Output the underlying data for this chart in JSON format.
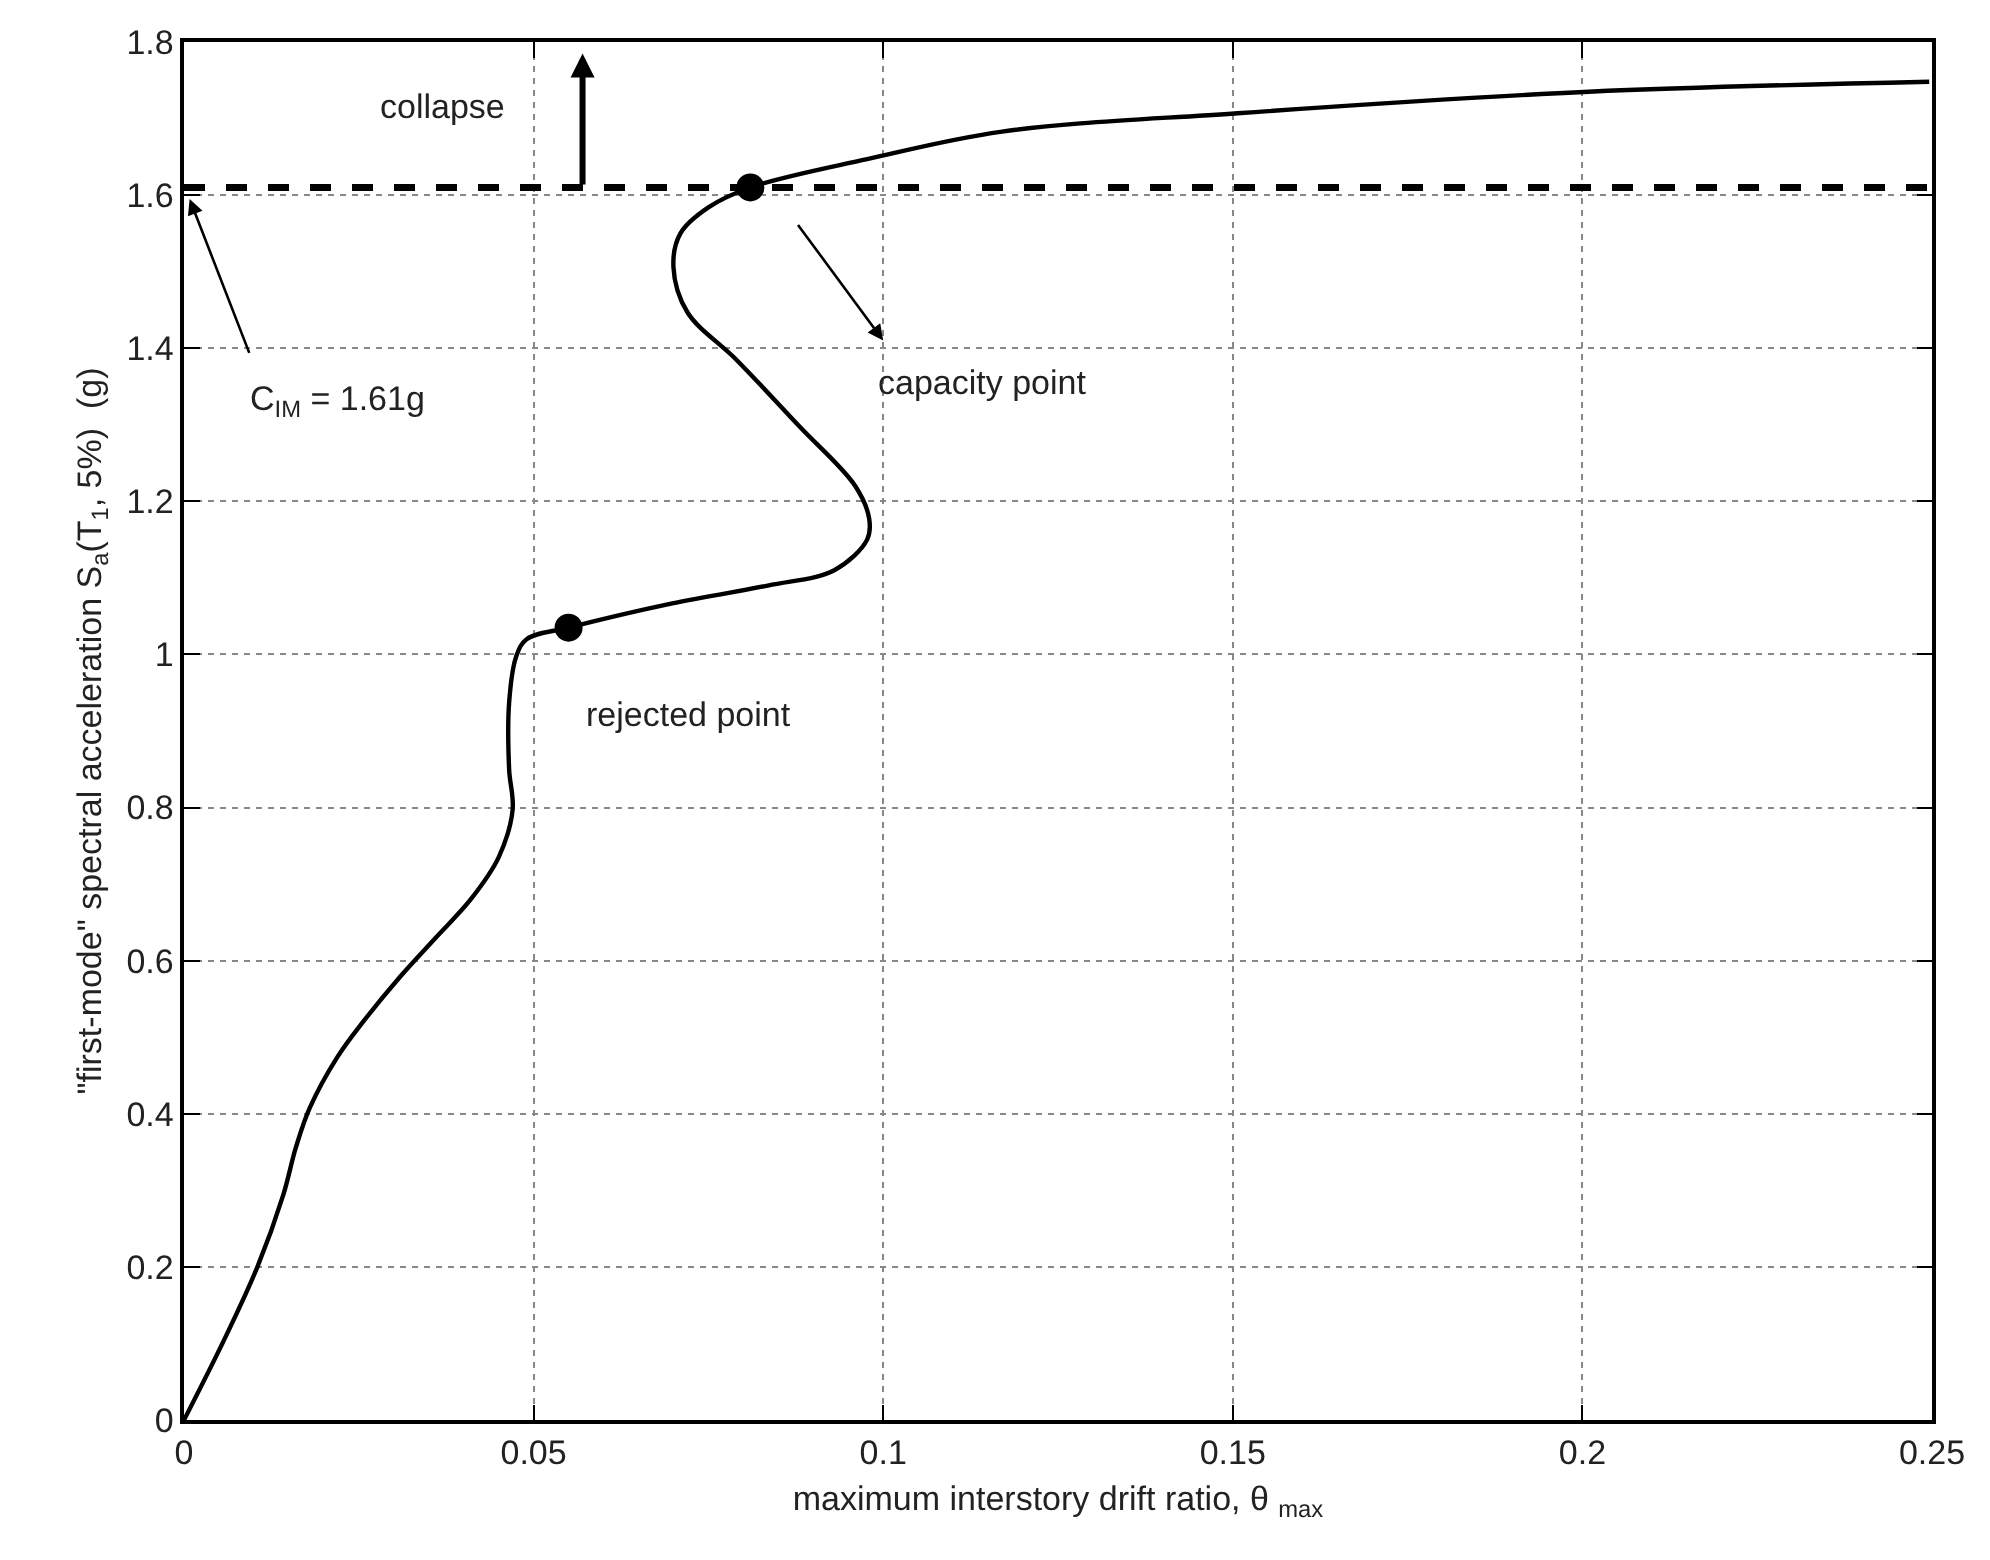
{
  "chart_data": {
    "type": "line",
    "xlabel": "maximum interstory drift ratio, θ $_{max}$",
    "ylabel": "\"first-mode\" spectral acceleration S$_{a}$(T$_{1}$, 5%)  (g)",
    "xlim": [
      0,
      0.25
    ],
    "xticks": [
      0,
      0.05,
      0.1,
      0.15,
      0.2,
      0.25
    ],
    "ylim": [
      0,
      1.8
    ],
    "yticks": [
      0,
      0.2,
      0.4,
      0.6,
      0.8,
      1,
      1.2,
      1.4,
      1.6,
      1.8
    ],
    "grid": true,
    "series": [
      {
        "color": "#000000",
        "marker": "none",
        "line_style": "solid",
        "x": [
          0,
          0.0057,
          0.0105,
          0.0142,
          0.016,
          0.018,
          0.022,
          0.0256,
          0.031,
          0.036,
          0.041,
          0.045,
          0.047,
          0.0465,
          0.0465,
          0.0475,
          0.049,
          0.055,
          0.069,
          0.0835,
          0.093,
          0.0977,
          0.098,
          0.096,
          0.088,
          0.079,
          0.072,
          0.07,
          0.071,
          0.075,
          0.081,
          0.0977,
          0.117,
          0.1507,
          0.2009,
          0.2496
        ],
        "values": [
          0,
          0.104,
          0.2,
          0.294,
          0.356,
          0.408,
          0.475,
          0.52,
          0.58,
          0.63,
          0.68,
          0.735,
          0.797,
          0.85,
          0.937,
          0.997,
          1.02,
          1.035,
          1.065,
          1.09,
          1.11,
          1.15,
          1.177,
          1.22,
          1.298,
          1.385,
          1.447,
          1.506,
          1.55,
          1.584,
          1.61,
          1.647,
          1.683,
          1.707,
          1.735,
          1.748
        ]
      },
      {
        "type": "scatter",
        "color": "#000000",
        "marker": "circle",
        "x": [
          0.055,
          0.081
        ],
        "values": [
          1.035,
          1.61
        ]
      }
    ],
    "ref_lines": [
      {
        "axis": "y",
        "value": 1.61,
        "color": "#000000",
        "line_style": "dashed"
      }
    ],
    "annotations": [
      "collapse",
      "C$_{IM}$ = 1.61g",
      "capacity point",
      "rejected point"
    ]
  }
}
